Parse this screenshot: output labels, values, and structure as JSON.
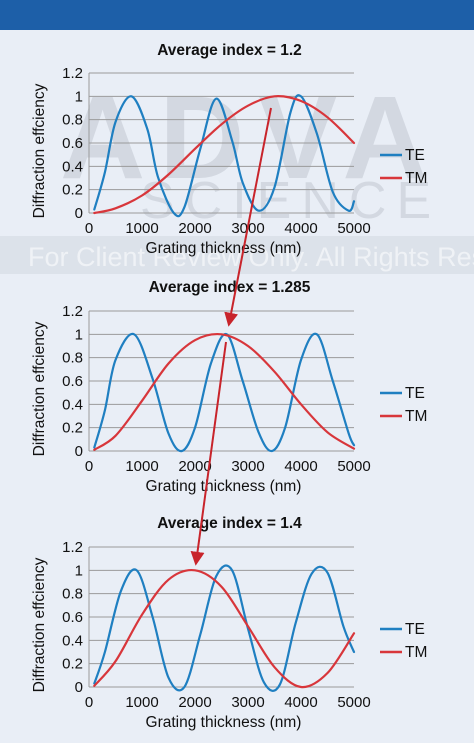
{
  "watermark": {
    "brand": "ADVA",
    "sub": "SCIENCE",
    "notice": "For Client Review Only. All Rights Reserved."
  },
  "colors": {
    "TE": "#1f7fc1",
    "TM": "#d8363b",
    "arrow": "#c8242b",
    "grid": "#9a9a9a"
  },
  "chart_data": [
    {
      "type": "line",
      "title": "Average index = 1.2",
      "xlabel": "Grating thickness (nm)",
      "ylabel": "Diffraction effciency",
      "xlim": [
        0,
        5000
      ],
      "ylim": [
        0,
        1.2
      ],
      "xticks": [
        "0",
        "1000",
        "2000",
        "3000",
        "4000",
        "5000"
      ],
      "yticks": [
        "0",
        "0.2",
        "0.4",
        "0.6",
        "0.8",
        "1",
        "1.2"
      ],
      "grid": "horizontal",
      "legend": "right",
      "series": [
        {
          "name": "TE",
          "x": [
            100,
            300,
            500,
            800,
            1100,
            1300,
            1600,
            1800,
            2100,
            2400,
            2700,
            2900,
            3200,
            3500,
            3800,
            4000,
            4300,
            4600,
            4900,
            5000
          ],
          "y": [
            0.03,
            0.35,
            0.78,
            1.0,
            0.72,
            0.31,
            0.0,
            0.05,
            0.55,
            0.98,
            0.62,
            0.26,
            0.02,
            0.22,
            0.86,
            1.0,
            0.68,
            0.18,
            0.02,
            0.1
          ]
        },
        {
          "name": "TM",
          "x": [
            100,
            500,
            1000,
            1500,
            2000,
            2500,
            3000,
            3500,
            4000,
            4500,
            5000
          ],
          "y": [
            0.0,
            0.04,
            0.15,
            0.33,
            0.55,
            0.76,
            0.92,
            1.0,
            0.96,
            0.82,
            0.6
          ]
        }
      ]
    },
    {
      "type": "line",
      "title": "Average index = 1.285",
      "xlabel": "Grating thickness (nm)",
      "ylabel": "Diffraction effciency",
      "xlim": [
        0,
        5000
      ],
      "ylim": [
        0,
        1.2
      ],
      "xticks": [
        "0",
        "1000",
        "2000",
        "3000",
        "4000",
        "5000"
      ],
      "yticks": [
        "0",
        "0.2",
        "0.4",
        "0.6",
        "0.8",
        "1",
        "1.2"
      ],
      "grid": "horizontal",
      "legend": "right",
      "series": [
        {
          "name": "TE",
          "x": [
            100,
            300,
            500,
            850,
            1200,
            1500,
            1750,
            2000,
            2300,
            2600,
            2900,
            3200,
            3450,
            3700,
            4000,
            4300,
            4600,
            4900,
            5000
          ],
          "y": [
            0.03,
            0.35,
            0.78,
            1.0,
            0.62,
            0.15,
            0.0,
            0.2,
            0.75,
            1.0,
            0.6,
            0.16,
            0.0,
            0.2,
            0.78,
            1.0,
            0.6,
            0.15,
            0.05
          ]
        },
        {
          "name": "TM",
          "x": [
            100,
            500,
            1000,
            1500,
            2000,
            2500,
            3000,
            3500,
            4000,
            4500,
            5000
          ],
          "y": [
            0.01,
            0.13,
            0.43,
            0.75,
            0.95,
            1.0,
            0.9,
            0.68,
            0.4,
            0.16,
            0.02
          ]
        }
      ]
    },
    {
      "type": "line",
      "title": "Average index = 1.4",
      "xlabel": "Grating thickness (nm)",
      "ylabel": "Diffraction effciency",
      "xlim": [
        0,
        5000
      ],
      "ylim": [
        0,
        1.2
      ],
      "xticks": [
        "0",
        "1000",
        "2000",
        "3000",
        "4000",
        "5000"
      ],
      "yticks": [
        "0",
        "0.2",
        "0.4",
        "0.6",
        "0.8",
        "1",
        "1.2"
      ],
      "grid": "horizontal",
      "legend": "right",
      "series": [
        {
          "name": "TE",
          "x": [
            100,
            300,
            600,
            900,
            1200,
            1500,
            1800,
            2100,
            2400,
            2700,
            3000,
            3300,
            3600,
            3900,
            4200,
            4500,
            4800,
            5000
          ],
          "y": [
            0.03,
            0.3,
            0.82,
            1.0,
            0.6,
            0.08,
            0.0,
            0.45,
            0.95,
            1.0,
            0.5,
            0.04,
            0.02,
            0.55,
            0.97,
            0.98,
            0.52,
            0.3
          ]
        },
        {
          "name": "TM",
          "x": [
            100,
            500,
            1000,
            1500,
            2000,
            2500,
            3000,
            3500,
            4000,
            4500,
            5000
          ],
          "y": [
            0.01,
            0.22,
            0.62,
            0.92,
            1.0,
            0.86,
            0.52,
            0.17,
            0.0,
            0.12,
            0.46
          ]
        }
      ]
    }
  ]
}
